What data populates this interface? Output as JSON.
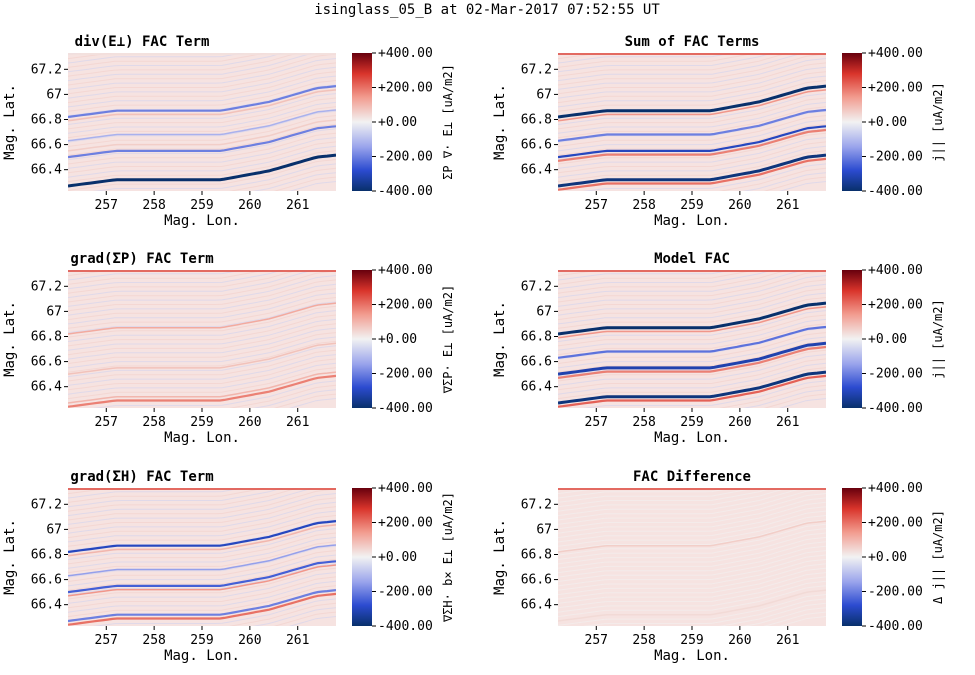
{
  "suptitle": "isinglass_05_B at 02-Mar-2017 07:52:55 UT",
  "colors": {
    "neg_dark": "#08306b",
    "neg": "#2c4bd0",
    "zero": "#f2f2f2",
    "pos": "#e0453b",
    "pos_dark": "#67000d",
    "background": "#f6e3e1"
  },
  "chart_data": [
    {
      "type": "heatmap",
      "title": "div(E⊥) FAC Term",
      "xlabel": "Mag. Lon.",
      "ylabel": "Mag. Lat.",
      "xlim": [
        256.2,
        261.8
      ],
      "ylim": [
        66.23,
        67.33
      ],
      "xticks": [
        257,
        258,
        259,
        260,
        261
      ],
      "yticks": [
        66.4,
        66.6,
        66.8,
        67,
        67.2
      ],
      "colorbar": {
        "label": "ΣP ∇· E⊥ [uA/m2]",
        "range": [
          -400,
          400
        ],
        "ticks": [
          "+400.00",
          "+200.00",
          "+0.00",
          "-200.00",
          "-400.00"
        ]
      },
      "features": [
        {
          "latitude_offset": 0.0,
          "value": -400
        },
        {
          "latitude_offset": 0.23,
          "value": -200
        },
        {
          "latitude_offset": 0.28,
          "value": 60
        },
        {
          "latitude_offset": 0.36,
          "value": -120
        },
        {
          "latitude_offset": 0.52,
          "value": 80
        },
        {
          "latitude_offset": 0.55,
          "value": -200
        }
      ]
    },
    {
      "type": "heatmap",
      "title": "Sum of FAC Terms",
      "xlabel": "Mag. Lon.",
      "ylabel": "Mag. Lat.",
      "xlim": [
        256.2,
        261.8
      ],
      "ylim": [
        66.23,
        67.33
      ],
      "xticks": [
        257,
        258,
        259,
        260,
        261
      ],
      "yticks": [
        66.4,
        66.6,
        66.8,
        67,
        67.2
      ],
      "colorbar": {
        "label": "j|| [uA/m2]",
        "range": [
          -400,
          400
        ],
        "ticks": [
          "+400.00",
          "+200.00",
          "+0.00",
          "-200.00",
          "-400.00"
        ]
      },
      "features": [
        {
          "latitude_offset": -0.03,
          "value": 200
        },
        {
          "latitude_offset": 0.0,
          "value": -380
        },
        {
          "latitude_offset": 0.2,
          "value": 180
        },
        {
          "latitude_offset": 0.23,
          "value": -300
        },
        {
          "latitude_offset": 0.36,
          "value": -200
        },
        {
          "latitude_offset": 0.52,
          "value": 150
        },
        {
          "latitude_offset": 0.55,
          "value": -400
        }
      ]
    },
    {
      "type": "heatmap",
      "title": "grad(ΣP) FAC Term",
      "xlabel": "Mag. Lon.",
      "ylabel": "Mag. Lat.",
      "xlim": [
        256.2,
        261.8
      ],
      "ylim": [
        66.23,
        67.33
      ],
      "xticks": [
        257,
        258,
        259,
        260,
        261
      ],
      "yticks": [
        66.4,
        66.6,
        66.8,
        67,
        67.2
      ],
      "colorbar": {
        "label": "∇ΣP· E⊥ [uA/m2]",
        "range": [
          -400,
          400
        ],
        "ticks": [
          "+400.00",
          "+200.00",
          "+0.00",
          "-200.00",
          "-400.00"
        ]
      },
      "features": [
        {
          "latitude_offset": -0.03,
          "value": 180
        },
        {
          "latitude_offset": 0.0,
          "value": 100
        },
        {
          "latitude_offset": 0.23,
          "value": 80
        },
        {
          "latitude_offset": 0.55,
          "value": 120
        }
      ]
    },
    {
      "type": "heatmap",
      "title": "Model FAC",
      "xlabel": "Mag. Lon.",
      "ylabel": "Mag. Lat.",
      "xlim": [
        256.2,
        261.8
      ],
      "ylim": [
        66.23,
        67.33
      ],
      "xticks": [
        257,
        258,
        259,
        260,
        261
      ],
      "yticks": [
        66.4,
        66.6,
        66.8,
        67,
        67.2
      ],
      "colorbar": {
        "label": "j|| [uA/m2]",
        "range": [
          -400,
          400
        ],
        "ticks": [
          "+400.00",
          "+200.00",
          "+0.00",
          "-200.00",
          "-400.00"
        ]
      },
      "features": [
        {
          "latitude_offset": -0.03,
          "value": 220
        },
        {
          "latitude_offset": 0.0,
          "value": -380
        },
        {
          "latitude_offset": 0.2,
          "value": 180
        },
        {
          "latitude_offset": 0.23,
          "value": -320
        },
        {
          "latitude_offset": 0.36,
          "value": -220
        },
        {
          "latitude_offset": 0.52,
          "value": 150
        },
        {
          "latitude_offset": 0.55,
          "value": -400
        }
      ]
    },
    {
      "type": "heatmap",
      "title": "grad(ΣH) FAC Term",
      "xlabel": "Mag. Lon.",
      "ylabel": "Mag. Lat.",
      "xlim": [
        256.2,
        261.8
      ],
      "ylim": [
        66.23,
        67.33
      ],
      "xticks": [
        257,
        258,
        259,
        260,
        261
      ],
      "yticks": [
        66.4,
        66.6,
        66.8,
        67,
        67.2
      ],
      "colorbar": {
        "label": "∇ΣH· b× E⊥ [uA/m2]",
        "range": [
          -400,
          400
        ],
        "ticks": [
          "+400.00",
          "+200.00",
          "+0.00",
          "-200.00",
          "-400.00"
        ]
      },
      "features": [
        {
          "latitude_offset": -0.03,
          "value": 200
        },
        {
          "latitude_offset": 0.0,
          "value": -200
        },
        {
          "latitude_offset": 0.2,
          "value": 150
        },
        {
          "latitude_offset": 0.23,
          "value": -250
        },
        {
          "latitude_offset": 0.36,
          "value": -150
        },
        {
          "latitude_offset": 0.52,
          "value": 100
        },
        {
          "latitude_offset": 0.55,
          "value": -300
        }
      ]
    },
    {
      "type": "heatmap",
      "title": "FAC Difference",
      "xlabel": "Mag. Lon.",
      "ylabel": "Mag. Lat.",
      "xlim": [
        256.2,
        261.8
      ],
      "ylim": [
        66.23,
        67.33
      ],
      "xticks": [
        257,
        258,
        259,
        260,
        261
      ],
      "yticks": [
        66.4,
        66.6,
        66.8,
        67,
        67.2
      ],
      "colorbar": {
        "label": "Δ j|| [uA/m2]",
        "range": [
          -400,
          400
        ],
        "ticks": [
          "+400.00",
          "+200.00",
          "+0.00",
          "-200.00",
          "-400.00"
        ]
      },
      "features": [
        {
          "latitude_offset": 0.0,
          "value": 40
        },
        {
          "latitude_offset": 0.55,
          "value": 60
        }
      ]
    }
  ]
}
